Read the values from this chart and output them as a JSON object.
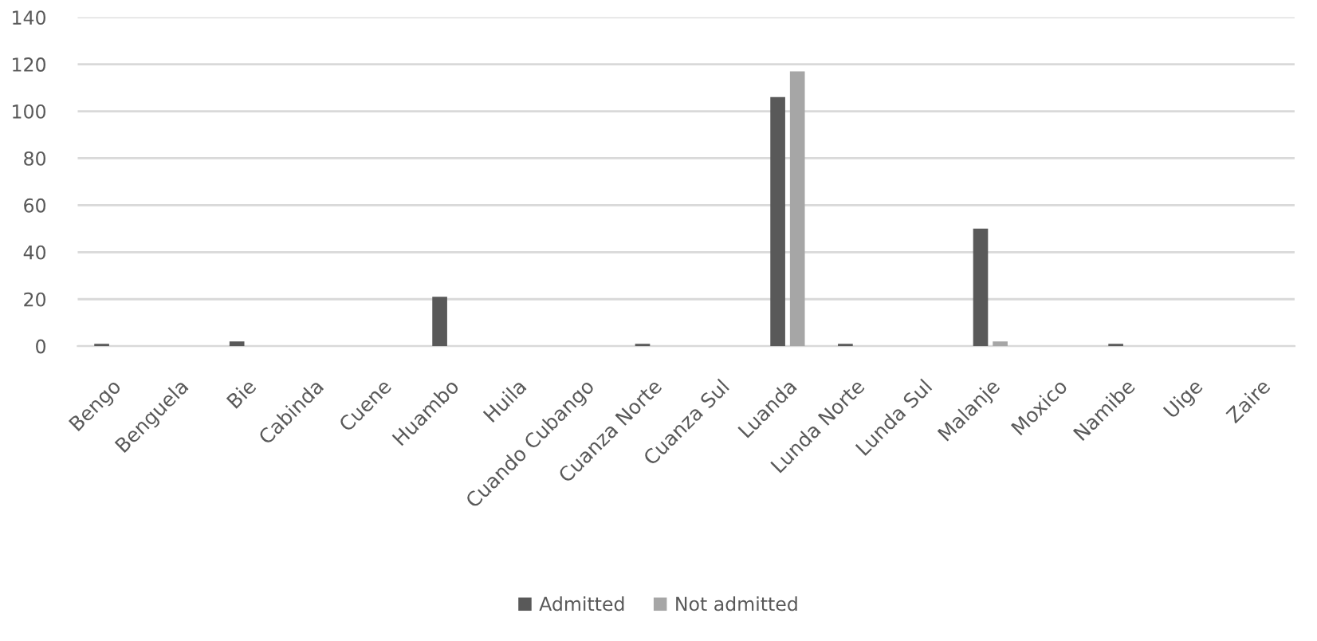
{
  "chart_data": {
    "type": "bar",
    "categories": [
      "Bengo",
      "Benguela",
      "Bie",
      "Cabinda",
      "Cuene",
      "Huambo",
      "Huila",
      "Cuando Cubango",
      "Cuanza Norte",
      "Cuanza Sul",
      "Luanda",
      "Lunda Norte",
      "Lunda Sul",
      "Malanje",
      "Moxico",
      "Namibe",
      "Uige",
      "Zaire"
    ],
    "series": [
      {
        "name": "Admitted",
        "color": "#595959",
        "values": [
          1,
          0,
          2,
          0,
          0,
          21,
          0,
          0,
          1,
          0,
          106,
          1,
          0,
          50,
          0,
          1,
          0,
          0
        ]
      },
      {
        "name": "Not admitted",
        "color": "#a6a6a6",
        "values": [
          0,
          0,
          0,
          0,
          0,
          0,
          0,
          0,
          0,
          0,
          117,
          0,
          0,
          2,
          0,
          0,
          0,
          0
        ]
      }
    ],
    "ylim": [
      0,
      140
    ],
    "yticks": [
      0,
      20,
      40,
      60,
      80,
      100,
      120,
      140
    ],
    "grid": "y",
    "legend": "bottom"
  }
}
